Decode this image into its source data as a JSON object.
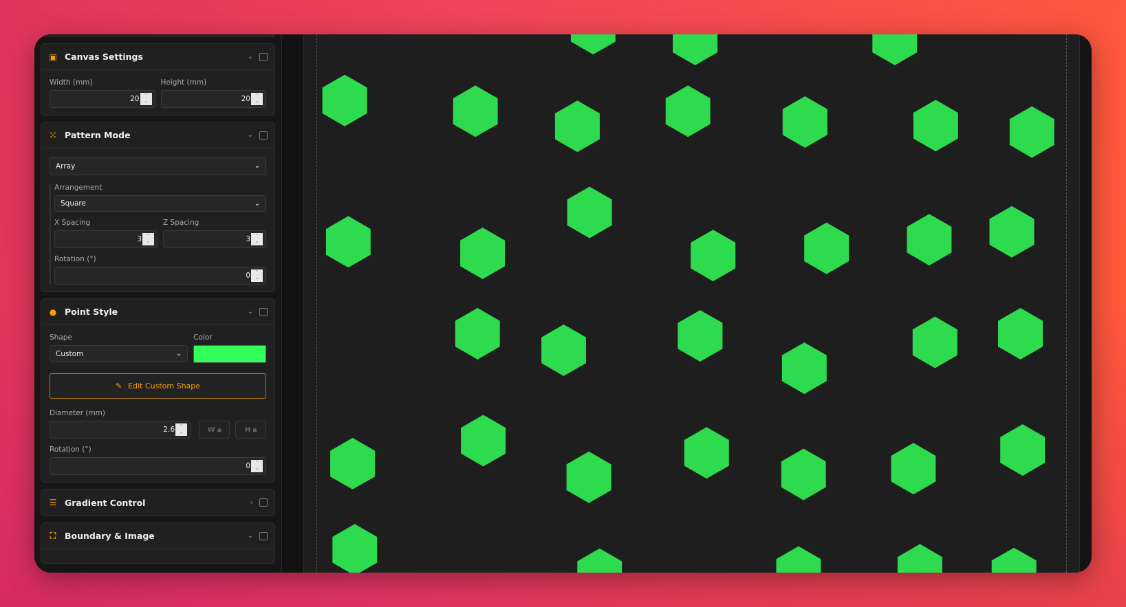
{
  "sidebar": {
    "canvas_settings": {
      "title": "Canvas Settings",
      "icon": "canvas-icon",
      "width_label": "Width (mm)",
      "width_value": "20",
      "height_label": "Height (mm)",
      "height_value": "20"
    },
    "pattern_mode": {
      "title": "Pattern Mode",
      "icon": "pattern-icon",
      "mode_value": "Array",
      "arrangement_label": "Arrangement",
      "arrangement_value": "Square",
      "x_spacing_label": "X Spacing",
      "x_spacing_value": "3",
      "z_spacing_label": "Z Spacing",
      "z_spacing_value": "3",
      "rotation_label": "Rotation (°)",
      "rotation_value": "0"
    },
    "point_style": {
      "title": "Point Style",
      "icon": "point-style-icon",
      "shape_label": "Shape",
      "shape_value": "Custom",
      "color_label": "Color",
      "color_value": "#33ff5a",
      "edit_button": "Edit Custom Shape",
      "diameter_label": "Diameter (mm)",
      "diameter_value": "2.6",
      "w_lock": "W",
      "h_lock": "H",
      "rotation_label": "Rotation (°)",
      "rotation_value": "0"
    },
    "gradient_control": {
      "title": "Gradient Control",
      "collapsed": true
    },
    "boundary_image": {
      "title": "Boundary & Image"
    }
  },
  "canvas": {
    "background": "#1e1e1e",
    "point_color": "#2edb4e",
    "point_shape": "hexagon"
  },
  "colors": {
    "accent": "#f5a000"
  }
}
